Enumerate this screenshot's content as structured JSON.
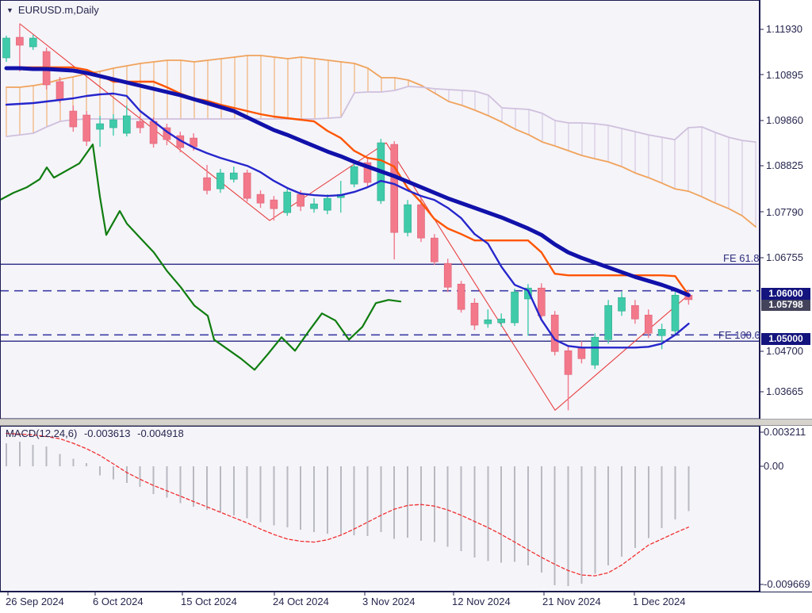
{
  "ui": {
    "title": {
      "symbol_tf": "EURUSD.m,Daily",
      "dropdown_icon": "▼"
    },
    "price_axis_labels": [
      "1.11930",
      "1.10895",
      "1.09860",
      "1.08825",
      "1.07790",
      "1.06755",
      "1.04700",
      "1.03665"
    ],
    "price_badges": {
      "level_106": "1.06000",
      "current": "1.05798",
      "level_105": "1.05000"
    },
    "fe_labels": {
      "fe618": "FE 61.8",
      "fe100": "FE 100.0"
    },
    "macd_header": {
      "name": "MACD(12,24,6)",
      "macd_value": "-0.003613",
      "signal_value": "-0.004918"
    },
    "macd_axis_labels": [
      "0.003211",
      "0.00",
      "-0.009669"
    ],
    "date_labels": [
      "26 Sep 2024",
      "6 Oct 2024",
      "15 Oct 2024",
      "24 Oct 2024",
      "3 Nov 2024",
      "12 Nov 2024",
      "21 Nov 2024",
      "1 Dec 2024"
    ]
  },
  "colors": {
    "background": "#f5f4f9",
    "frame": "#1c1c4e",
    "text": "#26264f",
    "bull_candle": "#3fcbaa",
    "bear_candle": "#f2788a",
    "bull_stroke": "#2aa98d",
    "bear_stroke": "#de6174",
    "ma_thick_navy": "#1111aa",
    "ma_blue": "#2626cc",
    "ma_orange": "#ff5500",
    "cloud_span_a_orange": "#f0a35c",
    "cloud_span_b_lavender": "#cfc0dd",
    "green_line": "#0f7d0f",
    "zigzag_red": "#e84040",
    "dashed_level": "#3d3da6",
    "fe_line": "#3a3a8e",
    "macd_histogram": "#b9b9c1",
    "macd_signal": "#f03030",
    "badge_navy": "#14147e",
    "badge_current": "#43435b",
    "splitter": "#d6d3cd"
  },
  "chart_data": {
    "type": "candlestick",
    "title": "EURUSD.m,Daily",
    "x_axis_labels": [
      "26 Sep 2024",
      "6 Oct 2024",
      "15 Oct 2024",
      "24 Oct 2024",
      "3 Nov 2024",
      "12 Nov 2024",
      "21 Nov 2024",
      "1 Dec 2024"
    ],
    "y_axis": {
      "tick_labels": [
        1.1193,
        1.10895,
        1.0986,
        1.08825,
        1.0779,
        1.06755,
        1.047,
        1.03665
      ],
      "range": [
        1.033,
        1.126
      ]
    },
    "current_price": 1.05798,
    "levels": {
      "fe618": {
        "label": "FE 61.8",
        "price": 1.06603
      },
      "fe100": {
        "label": "FE 100.0",
        "price": 1.04857
      },
      "dashed": [
        1.06,
        1.05
      ]
    },
    "candles_ohlc": [
      [
        1.11283,
        1.11786,
        1.11193,
        1.11732
      ],
      [
        1.1175,
        1.12056,
        1.10977,
        1.1157
      ],
      [
        1.11534,
        1.11804,
        1.11462,
        1.11732
      ],
      [
        1.11427,
        1.11516,
        1.10563,
        1.10671
      ],
      [
        1.10743,
        1.10851,
        1.10257,
        1.10347
      ],
      [
        1.10077,
        1.10203,
        1.09609,
        1.09717
      ],
      [
        1.09987,
        1.10077,
        1.09285,
        1.09393
      ],
      [
        1.09663,
        1.09969,
        1.09267,
        1.09789
      ],
      [
        1.09699,
        1.10005,
        1.09519,
        1.09879
      ],
      [
        1.09573,
        1.10203,
        1.09501,
        1.09969
      ],
      [
        1.09843,
        1.09969,
        1.09573,
        1.09699
      ],
      [
        1.09843,
        1.09933,
        1.09249,
        1.09339
      ],
      [
        1.09699,
        1.09789,
        1.09303,
        1.09429
      ],
      [
        1.09519,
        1.09609,
        1.09141,
        1.09249
      ],
      [
        1.09465,
        1.09573,
        1.09177,
        1.09267
      ],
      [
        1.08565,
        1.08853,
        1.08187,
        1.08277
      ],
      [
        1.08313,
        1.08763,
        1.08223,
        1.08673
      ],
      [
        1.08529,
        1.08817,
        1.08457,
        1.08673
      ],
      [
        1.08673,
        1.08745,
        1.08025,
        1.08097
      ],
      [
        1.08187,
        1.08277,
        1.07881,
        1.07989
      ],
      [
        1.08061,
        1.08151,
        1.07593,
        1.07863
      ],
      [
        1.07773,
        1.08313,
        1.07701,
        1.08241
      ],
      [
        1.08187,
        1.08277,
        1.07809,
        1.07917
      ],
      [
        1.07863,
        1.08097,
        1.07773,
        1.07971
      ],
      [
        1.07827,
        1.08187,
        1.07737,
        1.08097
      ],
      [
        1.08115,
        1.08493,
        1.07773,
        1.08187
      ],
      [
        1.08421,
        1.08907,
        1.08349,
        1.08817
      ],
      [
        1.08907,
        1.08997,
        1.08349,
        1.08457
      ],
      [
        1.08043,
        1.09447,
        1.07971,
        1.09357
      ],
      [
        1.09321,
        1.09393,
        1.06711,
        1.07323
      ],
      [
        1.07323,
        1.08061,
        1.07233,
        1.07953
      ],
      [
        1.07953,
        1.08097,
        1.07107,
        1.07197
      ],
      [
        1.07197,
        1.07287,
        1.06585,
        1.06657
      ],
      [
        1.06621,
        1.06729,
        1.05973,
        1.06081
      ],
      [
        1.06153,
        1.06225,
        1.05505,
        1.05577
      ],
      [
        1.05721,
        1.05829,
        1.05113,
        1.05221
      ],
      [
        1.05253,
        1.05577,
        1.05163,
        1.05343
      ],
      [
        1.05275,
        1.05487,
        1.05185,
        1.05361
      ],
      [
        1.05275,
        1.06045,
        1.05203,
        1.05973
      ],
      [
        1.05815,
        1.06153,
        1.04983,
        1.06063
      ],
      [
        1.06063,
        1.06171,
        1.05325,
        1.05433
      ],
      [
        1.05451,
        1.05541,
        1.04533,
        1.04623
      ],
      [
        1.04641,
        1.04749,
        1.03291,
        1.04101
      ],
      [
        1.04713,
        1.04857,
        1.04353,
        1.04461
      ],
      [
        1.04317,
        1.05037,
        1.04227,
        1.04947
      ],
      [
        1.04893,
        1.05793,
        1.04803,
        1.05667
      ],
      [
        1.05541,
        1.05973,
        1.05433,
        1.05847
      ],
      [
        1.05667,
        1.05793,
        1.05253,
        1.05361
      ],
      [
        1.05451,
        1.05577,
        1.04929,
        1.05037
      ],
      [
        1.04983,
        1.05253,
        1.04677,
        1.05127
      ],
      [
        1.05091,
        1.06009,
        1.05001,
        1.05901
      ],
      [
        1.05901,
        1.06027,
        1.05685,
        1.05798
      ]
    ],
    "overlays": {
      "ma_thick_navy": [
        1.11049,
        1.11049,
        1.11031,
        1.11031,
        1.11013,
        1.10995,
        1.10941,
        1.10869,
        1.10797,
        1.10725,
        1.10653,
        1.10581,
        1.10509,
        1.10437,
        1.10347,
        1.10257,
        1.10167,
        1.10077,
        1.09933,
        1.09789,
        1.09645,
        1.09537,
        1.09411,
        1.09285,
        1.09159,
        1.09051,
        1.08925,
        1.08817,
        1.08709,
        1.08601,
        1.08475,
        1.08349,
        1.08223,
        1.08097,
        1.07989,
        1.07881,
        1.07773,
        1.07665,
        1.07539,
        1.07413,
        1.07269,
        1.07053,
        1.06873,
        1.06747,
        1.06639,
        1.06531,
        1.06423,
        1.06315,
        1.06225,
        1.06135,
        1.06027,
        1.05901
      ],
      "ma_blue": [
        1.10221,
        1.10239,
        1.10257,
        1.10293,
        1.10329,
        1.10365,
        1.10419,
        1.10455,
        1.10473,
        1.10419,
        1.10077,
        1.09843,
        1.09609,
        1.09411,
        1.09249,
        1.09123,
        1.09015,
        1.08925,
        1.08835,
        1.08691,
        1.08493,
        1.08331,
        1.08205,
        1.08169,
        1.08151,
        1.08169,
        1.08241,
        1.08349,
        1.08493,
        1.08421,
        1.08277,
        1.08151,
        1.08061,
        1.07881,
        1.07647,
        1.07287,
        1.07071,
        1.06549,
        1.06135,
        1.06009,
        1.05343,
        1.04893,
        1.04749,
        1.04713,
        1.04713,
        1.04713,
        1.04713,
        1.04713,
        1.04731,
        1.04803,
        1.05001,
        1.05253
      ],
      "ma_orange": [
        1.11067,
        1.11067,
        1.11067,
        1.11067,
        1.11067,
        1.11067,
        1.11013,
        1.10887,
        1.10743,
        1.10743,
        1.10743,
        1.10743,
        1.10617,
        1.10473,
        1.10365,
        1.10311,
        1.10221,
        1.10149,
        1.10077,
        1.10005,
        1.09951,
        1.09915,
        1.09879,
        1.09843,
        1.09627,
        1.09465,
        1.09177,
        1.09015,
        1.08961,
        1.08817,
        1.08331,
        1.08007,
        1.07629,
        1.07413,
        1.07287,
        1.07143,
        1.07143,
        1.07143,
        1.07143,
        1.07143,
        1.06873,
        1.06387,
        1.06351,
        1.06351,
        1.06351,
        1.06351,
        1.06351,
        1.06351,
        1.06351,
        1.06351,
        1.06333,
        1.05901
      ],
      "cloud_x": [
        8,
        25,
        42,
        59,
        76,
        92,
        109,
        126,
        143,
        160,
        177,
        194,
        211,
        228,
        245,
        262,
        279,
        296,
        312,
        329,
        346,
        363,
        380,
        397,
        414,
        430,
        447,
        464,
        481,
        498,
        515,
        532,
        549,
        566,
        583,
        599,
        616,
        633,
        650,
        667,
        684,
        700,
        717,
        734,
        750,
        767,
        784,
        801,
        818,
        835,
        851,
        868,
        885,
        902,
        919,
        936,
        953
      ],
      "cloud_span_a": [
        1.10617,
        1.10617,
        1.10653,
        1.10707,
        1.10797,
        1.10851,
        1.10923,
        1.10977,
        1.11049,
        1.11103,
        1.11157,
        1.11193,
        1.11229,
        1.11229,
        1.11193,
        1.11229,
        1.11265,
        1.11301,
        1.11337,
        1.11337,
        1.11301,
        1.11265,
        1.11301,
        1.11265,
        1.11229,
        1.11193,
        1.11157,
        1.11049,
        1.10833,
        1.10833,
        1.10779,
        1.10653,
        1.10473,
        1.10293,
        1.10203,
        1.10095,
        1.09969,
        1.09825,
        1.09663,
        1.09537,
        1.09375,
        1.09285,
        1.09177,
        1.09069,
        1.08997,
        1.08925,
        1.08817,
        1.08673,
        1.08565,
        1.08439,
        1.08313,
        1.08259,
        1.08133,
        1.07989,
        1.07863,
        1.07701,
        1.07449
      ],
      "cloud_span_b": [
        1.09501,
        1.09537,
        1.09573,
        1.09717,
        1.09843,
        1.09879,
        1.09897,
        1.09897,
        1.09897,
        1.09897,
        1.09897,
        1.09897,
        1.09897,
        1.09897,
        1.09897,
        1.09897,
        1.09897,
        1.09897,
        1.09897,
        1.09897,
        1.09897,
        1.09897,
        1.09897,
        1.09897,
        1.09915,
        1.09933,
        1.10491,
        1.10509,
        1.10509,
        1.10545,
        1.10635,
        1.10617,
        1.10581,
        1.10563,
        1.10545,
        1.10527,
        1.10437,
        1.10149,
        1.10131,
        1.10113,
        1.10023,
        1.09861,
        1.09807,
        1.09807,
        1.09789,
        1.09753,
        1.09681,
        1.09609,
        1.09537,
        1.09483,
        1.09429,
        1.09699,
        1.09717,
        1.09591,
        1.09483,
        1.09411,
        1.09375
      ],
      "green_line": [
        [
          0,
          1.08061
        ],
        [
          17,
          1.08223
        ],
        [
          34,
          1.08349
        ],
        [
          50,
          1.08529
        ],
        [
          59,
          1.08799
        ],
        [
          68,
          1.08567
        ],
        [
          84,
          1.08727
        ],
        [
          100,
          1.08889
        ],
        [
          117,
          1.09321
        ],
        [
          126,
          1.08133
        ],
        [
          134,
          1.07269
        ],
        [
          151,
          1.07809
        ],
        [
          160,
          1.07524
        ],
        [
          177,
          1.07197
        ],
        [
          194,
          1.06873
        ],
        [
          211,
          1.06441
        ],
        [
          228,
          1.06081
        ],
        [
          245,
          1.05667
        ],
        [
          262,
          1.05433
        ],
        [
          270,
          1.04893
        ],
        [
          287,
          1.04677
        ],
        [
          304,
          1.04461
        ],
        [
          321,
          1.04209
        ],
        [
          338,
          1.04569
        ],
        [
          355,
          1.04947
        ],
        [
          372,
          1.04641
        ],
        [
          389,
          1.05073
        ],
        [
          406,
          1.05487
        ],
        [
          423,
          1.05325
        ],
        [
          440,
          1.04893
        ],
        [
          457,
          1.05181
        ],
        [
          474,
          1.05721
        ],
        [
          490,
          1.05793
        ],
        [
          505,
          1.05757
        ]
      ],
      "zigzag": [
        [
          25,
          1.12056
        ],
        [
          340,
          1.07593
        ],
        [
          487,
          1.09357
        ],
        [
          700,
          1.03291
        ],
        [
          868,
          1.05901
        ]
      ]
    },
    "macd": {
      "params": "12,24,6",
      "last_macd": -0.003613,
      "last_signal": -0.004918,
      "axis_range": [
        -0.009669,
        0.003211
      ],
      "histogram": [
        0.00186,
        0.00198,
        0.00173,
        0.00161,
        0.00099,
        0.00062,
        0.00025,
        -0.00074,
        -0.00105,
        -0.00136,
        -0.00167,
        -0.00223,
        -0.00254,
        -0.00297,
        -0.00328,
        -0.00353,
        -0.00371,
        -0.00396,
        -0.00421,
        -0.00452,
        -0.00476,
        -0.00495,
        -0.00513,
        -0.00532,
        -0.00544,
        -0.0055,
        -0.00557,
        -0.00563,
        -0.00532,
        -0.00588,
        -0.00576,
        -0.00601,
        -0.00613,
        -0.0065,
        -0.00687,
        -0.00736,
        -0.00767,
        -0.00779,
        -0.00773,
        -0.008,
        -0.0086,
        -0.0096,
        -0.00967,
        -0.0095,
        -0.0087,
        -0.008,
        -0.0073,
        -0.0066,
        -0.0058,
        -0.005,
        -0.0043,
        -0.003613
      ],
      "signal": [
        0.00266,
        0.0026,
        0.00254,
        0.00241,
        0.00223,
        0.00186,
        0.00142,
        0.00087,
        0.00019,
        -0.0005,
        -0.00105,
        -0.00155,
        -0.00198,
        -0.00241,
        -0.00285,
        -0.00328,
        -0.00371,
        -0.00415,
        -0.00458,
        -0.00507,
        -0.00551,
        -0.00588,
        -0.00606,
        -0.00613,
        -0.00594,
        -0.00557,
        -0.00507,
        -0.00452,
        -0.00396,
        -0.00347,
        -0.00316,
        -0.00309,
        -0.00322,
        -0.00353,
        -0.00396,
        -0.00446,
        -0.00495,
        -0.00551,
        -0.00613,
        -0.00675,
        -0.00736,
        -0.00792,
        -0.00842,
        -0.00879,
        -0.00885,
        -0.0086,
        -0.00798,
        -0.00718,
        -0.00637,
        -0.00588,
        -0.00538,
        -0.004918
      ]
    }
  }
}
